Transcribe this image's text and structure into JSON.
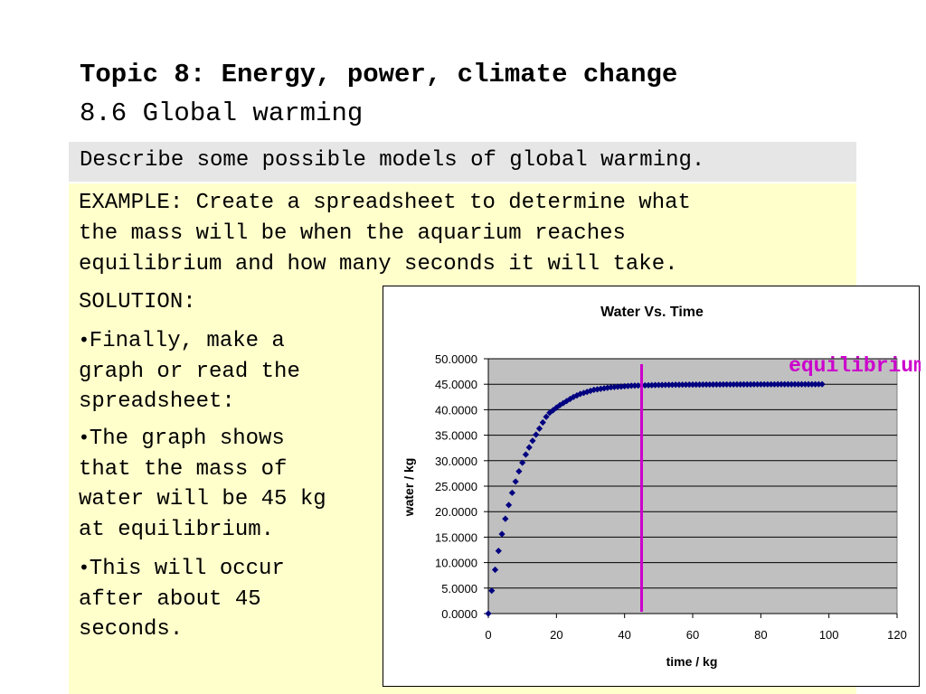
{
  "header": {
    "title": "Topic 8: Energy, power, climate change",
    "subtitle": "8.6 Global warming"
  },
  "objective": "Describe some possible models of global warming.",
  "example": {
    "lines": [
      "EXAMPLE: Create a spreadsheet to determine what",
      "the mass will be when the aquarium reaches",
      "equilibrium and how many seconds it will take."
    ]
  },
  "solution_label": "SOLUTION:",
  "bullets": [
    {
      "lines": [
        "Finally, make a",
        "graph or read the",
        "spreadsheet:"
      ]
    },
    {
      "lines": [
        "The graph shows",
        "that the mass of",
        "water will be 45 kg",
        "at equilibrium."
      ]
    },
    {
      "lines": [
        "This will occur",
        "after about 45",
        "seconds."
      ]
    }
  ],
  "chart_data": {
    "type": "scatter",
    "title": "Water Vs. Time",
    "xlabel": "time / kg",
    "ylabel": "water / kg",
    "xlim": [
      0,
      120
    ],
    "ylim": [
      0,
      50
    ],
    "xticks": [
      "0",
      "20",
      "40",
      "60",
      "80",
      "100",
      "120"
    ],
    "yticks": [
      "0.0000",
      "5.0000",
      "10.0000",
      "15.0000",
      "20.0000",
      "25.0000",
      "30.0000",
      "35.0000",
      "40.0000",
      "45.0000",
      "50.0000"
    ],
    "grid": true,
    "marker_color": "#000080",
    "plot_background": "#c0c0c0",
    "series": [
      {
        "x": [
          0,
          1,
          2,
          3,
          4,
          5,
          6,
          7,
          8,
          9,
          10,
          11,
          12,
          13,
          14,
          15,
          16,
          17,
          18,
          19,
          20,
          21,
          22,
          23,
          24,
          25,
          26,
          27,
          28,
          29,
          30,
          31,
          32,
          33,
          34,
          35,
          36,
          37,
          38,
          39,
          40,
          41,
          42,
          43,
          44,
          45,
          46,
          47,
          48,
          49,
          50,
          51,
          52,
          53,
          54,
          55,
          56,
          57,
          58,
          59,
          60,
          61,
          62,
          63,
          64,
          65,
          66,
          67,
          68,
          69,
          70,
          71,
          72,
          73,
          74,
          75,
          76,
          77,
          78,
          79,
          80,
          81,
          82,
          83,
          84,
          85,
          86,
          87,
          88,
          89,
          90,
          91,
          92,
          93,
          94,
          95,
          96,
          97,
          98
        ],
        "y": [
          0.0,
          4.5,
          8.6,
          12.3,
          15.6,
          18.6,
          21.3,
          23.7,
          25.9,
          27.9,
          29.6,
          31.2,
          32.6,
          33.9,
          35.1,
          36.3,
          37.5,
          38.6,
          39.4,
          39.9,
          40.4,
          40.9,
          41.3,
          41.7,
          42.1,
          42.5,
          42.8,
          43.1,
          43.3,
          43.5,
          43.7,
          43.9,
          44.0,
          44.1,
          44.2,
          44.3,
          44.4,
          44.45,
          44.5,
          44.55,
          44.6,
          44.65,
          44.7,
          44.72,
          44.74,
          44.76,
          44.78,
          44.8,
          44.82,
          44.84,
          44.85,
          44.86,
          44.87,
          44.88,
          44.89,
          44.9,
          44.9,
          44.91,
          44.91,
          44.92,
          44.92,
          44.93,
          44.93,
          44.94,
          44.94,
          44.94,
          44.95,
          44.95,
          44.95,
          44.96,
          44.96,
          44.96,
          44.96,
          44.97,
          44.97,
          44.97,
          44.97,
          44.97,
          44.98,
          44.98,
          44.98,
          44.98,
          44.98,
          44.98,
          44.98,
          44.99,
          44.99,
          44.99,
          44.99,
          44.99,
          44.99,
          44.99,
          44.99,
          44.99,
          44.99,
          44.99,
          44.99,
          45.0,
          45.0
        ]
      }
    ],
    "annotation": {
      "text": "equilibrium",
      "x": 45,
      "color": "#cc00cc"
    }
  }
}
